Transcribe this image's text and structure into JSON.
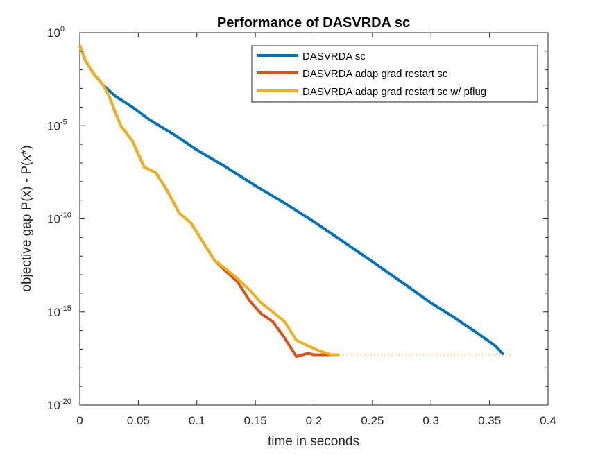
{
  "chart_data": {
    "type": "line",
    "title": "Performance of DASVRDA sc",
    "xlabel": "time in seconds",
    "ylabel": "objective gap P(x) - P(x*)",
    "xlim": [
      0,
      0.4
    ],
    "ylim": [
      1e-20,
      1
    ],
    "yscale": "log",
    "grid": false,
    "legend_position": "top-right",
    "x_ticks": [
      {
        "value": 0,
        "label": "0"
      },
      {
        "value": 0.05,
        "label": "0.05"
      },
      {
        "value": 0.1,
        "label": "0.1"
      },
      {
        "value": 0.15,
        "label": "0.15"
      },
      {
        "value": 0.2,
        "label": "0.2"
      },
      {
        "value": 0.25,
        "label": "0.25"
      },
      {
        "value": 0.3,
        "label": "0.3"
      },
      {
        "value": 0.35,
        "label": "0.35"
      },
      {
        "value": 0.4,
        "label": "0.4"
      }
    ],
    "y_ticks": [
      {
        "value": 1,
        "base": "10",
        "exp": "0"
      },
      {
        "value": 1e-05,
        "base": "10",
        "exp": "-5"
      },
      {
        "value": 1e-10,
        "base": "10",
        "exp": "-10"
      },
      {
        "value": 1e-15,
        "base": "10",
        "exp": "-15"
      },
      {
        "value": 1e-20,
        "base": "10",
        "exp": "-20"
      }
    ],
    "series": [
      {
        "name": "DASVRDA sc",
        "color": "#0072BD",
        "x": [
          0,
          0.005,
          0.012,
          0.02,
          0.03,
          0.045,
          0.06,
          0.08,
          0.1,
          0.125,
          0.15,
          0.175,
          0.2,
          0.225,
          0.25,
          0.275,
          0.3,
          0.32,
          0.34,
          0.355,
          0.362
        ],
        "y": [
          0.2,
          0.03,
          0.006,
          0.0015,
          0.0004,
          0.0001,
          2e-05,
          3.5e-06,
          5e-07,
          6e-08,
          6e-09,
          7e-10,
          7e-11,
          6e-12,
          5e-13,
          4e-14,
          3e-15,
          5e-16,
          7e-17,
          1.5e-17,
          5e-18
        ]
      },
      {
        "name": "DASVRDA adap grad restart sc",
        "color": "#D95319",
        "x": [
          0,
          0.005,
          0.012,
          0.02,
          0.025,
          0.03,
          0.035,
          0.045,
          0.055,
          0.065,
          0.075,
          0.085,
          0.095,
          0.105,
          0.115,
          0.125,
          0.135,
          0.145,
          0.155,
          0.165,
          0.175,
          0.185,
          0.195,
          0.2,
          0.205,
          0.215
        ],
        "y": [
          0.2,
          0.03,
          0.006,
          0.0015,
          0.0004,
          6e-05,
          1e-05,
          1.5e-06,
          6e-08,
          3e-08,
          3e-09,
          2e-10,
          6e-11,
          6e-12,
          6e-13,
          1.5e-13,
          4e-14,
          4e-15,
          8e-16,
          3e-16,
          4e-17,
          4e-18,
          6e-18,
          5e-18,
          5e-18,
          5e-18
        ]
      },
      {
        "name": "DASVRDA adap grad restart sc w/ pflug",
        "color": "#EDB120",
        "x": [
          0,
          0.005,
          0.012,
          0.02,
          0.025,
          0.03,
          0.035,
          0.045,
          0.055,
          0.065,
          0.075,
          0.085,
          0.095,
          0.105,
          0.115,
          0.125,
          0.135,
          0.145,
          0.155,
          0.165,
          0.175,
          0.185,
          0.195,
          0.205,
          0.215,
          0.222
        ],
        "y": [
          0.2,
          0.03,
          0.006,
          0.0015,
          0.0004,
          6e-05,
          1e-05,
          1.5e-06,
          6e-08,
          3e-08,
          3e-09,
          2e-10,
          6e-11,
          6e-12,
          6e-13,
          2e-13,
          6e-14,
          1.5e-14,
          3e-15,
          1e-15,
          3e-16,
          3e-17,
          1.5e-17,
          8e-18,
          5e-18,
          5e-18
        ]
      }
    ],
    "floor_marker": {
      "y": 5e-18,
      "x_start": 0.225,
      "x_end": 0.37,
      "color": "#EDB120"
    }
  }
}
